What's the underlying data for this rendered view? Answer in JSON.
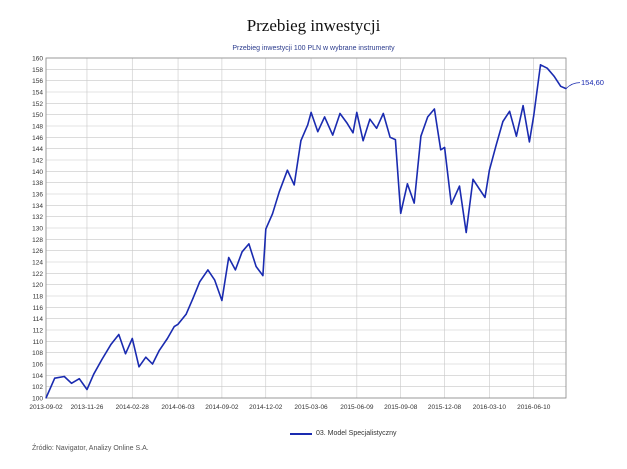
{
  "title": "Przebieg inwestycji",
  "subtitle": "Przebieg inwestycji 100 PLN w wybrane instrumenty",
  "source": "Źródło: Navigator, Analizy Online S.A.",
  "colors": {
    "series": "#1a2bb0",
    "grid": "#c8c8c8",
    "axis": "#888888",
    "end_label": "#1a2bb0"
  },
  "chart_data": {
    "type": "line",
    "title": "Przebieg inwestycji",
    "subtitle": "Przebieg inwestycji 100 PLN w wybrane instrumenty",
    "xlabel": "",
    "ylabel": "",
    "ylim": [
      100,
      160
    ],
    "y_ticks": [
      100,
      102,
      104,
      106,
      108,
      110,
      112,
      114,
      116,
      118,
      120,
      122,
      124,
      126,
      128,
      130,
      132,
      134,
      136,
      138,
      140,
      142,
      144,
      146,
      148,
      150,
      152,
      154,
      156,
      158,
      160
    ],
    "x_tick_labels": [
      "2013-09-02",
      "2013-11-26",
      "2014-02-28",
      "2014-06-03",
      "2014-09-02",
      "2014-12-02",
      "2015-03-06",
      "2015-06-09",
      "2015-09-08",
      "2015-12-08",
      "2016-03-10",
      "2016-06-10"
    ],
    "grid": true,
    "legend_position": "bottom",
    "end_value_label": "154,60",
    "series": [
      {
        "name": "03. Model Specjalistyczny",
        "x": [
          "2013-09-02",
          "2013-09-20",
          "2013-10-10",
          "2013-10-25",
          "2013-11-10",
          "2013-11-26",
          "2013-12-10",
          "2013-12-27",
          "2014-01-15",
          "2014-01-31",
          "2014-02-14",
          "2014-02-28",
          "2014-03-14",
          "2014-03-28",
          "2014-04-11",
          "2014-04-25",
          "2014-05-12",
          "2014-05-26",
          "2014-06-03",
          "2014-06-20",
          "2014-07-04",
          "2014-07-18",
          "2014-08-04",
          "2014-08-18",
          "2014-09-02",
          "2014-09-16",
          "2014-09-30",
          "2014-10-14",
          "2014-10-28",
          "2014-11-12",
          "2014-11-26",
          "2014-12-02",
          "2014-12-16",
          "2014-12-30",
          "2015-01-16",
          "2015-01-30",
          "2015-02-13",
          "2015-02-27",
          "2015-03-06",
          "2015-03-20",
          "2015-04-03",
          "2015-04-20",
          "2015-05-05",
          "2015-05-19",
          "2015-06-01",
          "2015-06-09",
          "2015-06-22",
          "2015-07-06",
          "2015-07-20",
          "2015-08-03",
          "2015-08-17",
          "2015-08-28",
          "2015-09-08",
          "2015-09-22",
          "2015-10-06",
          "2015-10-20",
          "2015-11-03",
          "2015-11-17",
          "2015-11-30",
          "2015-12-08",
          "2015-12-22",
          "2016-01-08",
          "2016-01-22",
          "2016-02-05",
          "2016-02-19",
          "2016-03-01",
          "2016-03-10",
          "2016-03-24",
          "2016-04-07",
          "2016-04-21",
          "2016-05-05",
          "2016-05-19",
          "2016-06-01",
          "2016-06-10",
          "2016-06-24",
          "2016-07-08",
          "2016-07-22",
          "2016-08-05",
          "2016-08-16"
        ],
        "values": [
          100.0,
          103.5,
          103.8,
          102.6,
          103.4,
          101.5,
          104.2,
          106.8,
          109.5,
          111.2,
          107.8,
          110.5,
          105.5,
          107.2,
          106.0,
          108.4,
          110.5,
          112.6,
          113.0,
          114.8,
          117.6,
          120.5,
          122.6,
          120.8,
          117.2,
          124.8,
          122.6,
          125.8,
          127.2,
          123.2,
          121.6,
          129.8,
          132.5,
          136.4,
          140.2,
          137.6,
          145.4,
          148.2,
          150.4,
          147.0,
          149.6,
          146.4,
          150.2,
          148.6,
          146.8,
          150.4,
          145.4,
          149.2,
          147.6,
          150.2,
          146.0,
          145.6,
          132.6,
          137.8,
          134.4,
          146.2,
          149.6,
          151.0,
          143.8,
          144.2,
          134.2,
          137.4,
          129.2,
          138.6,
          136.8,
          135.4,
          140.2,
          144.6,
          148.8,
          150.6,
          146.2,
          151.6,
          145.2,
          149.8,
          158.8,
          158.2,
          156.8,
          155.0,
          154.6
        ]
      }
    ]
  }
}
